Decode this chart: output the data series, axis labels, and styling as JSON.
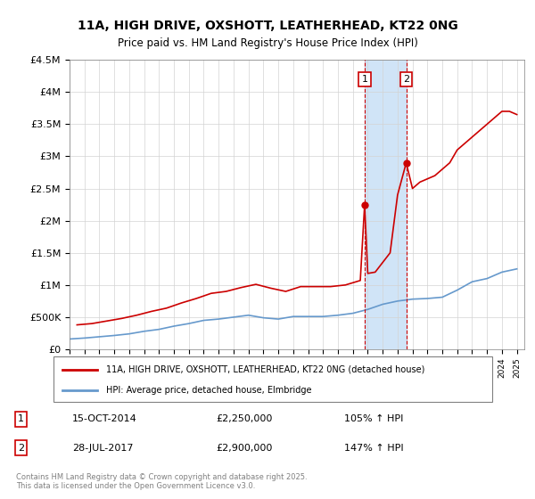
{
  "title_line1": "11A, HIGH DRIVE, OXSHOTT, LEATHERHEAD, KT22 0NG",
  "title_line2": "Price paid vs. HM Land Registry's House Price Index (HPI)",
  "legend_label1": "11A, HIGH DRIVE, OXSHOTT, LEATHERHEAD, KT22 0NG (detached house)",
  "legend_label2": "HPI: Average price, detached house, Elmbridge",
  "annotation1_label": "1",
  "annotation1_date": "15-OCT-2014",
  "annotation1_price": "£2,250,000",
  "annotation1_hpi": "105% ↑ HPI",
  "annotation2_label": "2",
  "annotation2_date": "28-JUL-2017",
  "annotation2_price": "£2,900,000",
  "annotation2_hpi": "147% ↑ HPI",
  "footer": "Contains HM Land Registry data © Crown copyright and database right 2025.\nThis data is licensed under the Open Government Licence v3.0.",
  "hpi_color": "#6699cc",
  "price_color": "#cc0000",
  "annotation_box_color": "#cc0000",
  "shaded_region_color": "#d0e4f7",
  "ylim": [
    0,
    4500000
  ],
  "yticks": [
    0,
    500000,
    1000000,
    1500000,
    2000000,
    2500000,
    3000000,
    3500000,
    4000000,
    4500000
  ],
  "ytick_labels": [
    "£0",
    "£500K",
    "£1M",
    "£1.5M",
    "£2M",
    "£2.5M",
    "£3M",
    "£3.5M",
    "£4M",
    "£4.5M"
  ],
  "x_start_year": 1995,
  "x_end_year": 2025,
  "sale1_year": 2014.79,
  "sale1_price": 2250000,
  "sale2_year": 2017.58,
  "sale2_price": 2900000,
  "hpi_years": [
    1995,
    1996,
    1997,
    1998,
    1999,
    2000,
    2001,
    2002,
    2003,
    2004,
    2005,
    2006,
    2007,
    2008,
    2009,
    2010,
    2011,
    2012,
    2013,
    2014,
    2015,
    2016,
    2017,
    2018,
    2019,
    2020,
    2021,
    2022,
    2023,
    2024,
    2025
  ],
  "hpi_values": [
    160000,
    175000,
    195000,
    215000,
    240000,
    280000,
    310000,
    360000,
    400000,
    450000,
    470000,
    500000,
    530000,
    490000,
    470000,
    510000,
    510000,
    510000,
    530000,
    560000,
    620000,
    700000,
    750000,
    780000,
    790000,
    810000,
    920000,
    1050000,
    1100000,
    1200000,
    1250000
  ],
  "price_years": [
    1995.5,
    1996.5,
    1997.5,
    1998.5,
    1999.5,
    2000.5,
    2001.5,
    2002.5,
    2003.5,
    2004.5,
    2005.5,
    2006.5,
    2007.5,
    2008.5,
    2009.5,
    2010.5,
    2011.5,
    2012.5,
    2013.5,
    2014.5,
    2014.79,
    2015.0,
    2015.5,
    2016.0,
    2016.5,
    2017.0,
    2017.58,
    2018.0,
    2018.5,
    2019.0,
    2019.5,
    2020.0,
    2020.5,
    2021.0,
    2021.5,
    2022.0,
    2022.5,
    2023.0,
    2023.5,
    2024.0,
    2024.5,
    2025.0
  ],
  "price_values": [
    380000,
    400000,
    440000,
    480000,
    530000,
    590000,
    640000,
    720000,
    790000,
    870000,
    900000,
    960000,
    1010000,
    950000,
    900000,
    975000,
    975000,
    975000,
    1000000,
    1070000,
    2250000,
    1180000,
    1200000,
    1350000,
    1500000,
    2400000,
    2900000,
    2500000,
    2600000,
    2650000,
    2700000,
    2800000,
    2900000,
    3100000,
    3200000,
    3300000,
    3400000,
    3500000,
    3600000,
    3700000,
    3700000,
    3650000
  ]
}
